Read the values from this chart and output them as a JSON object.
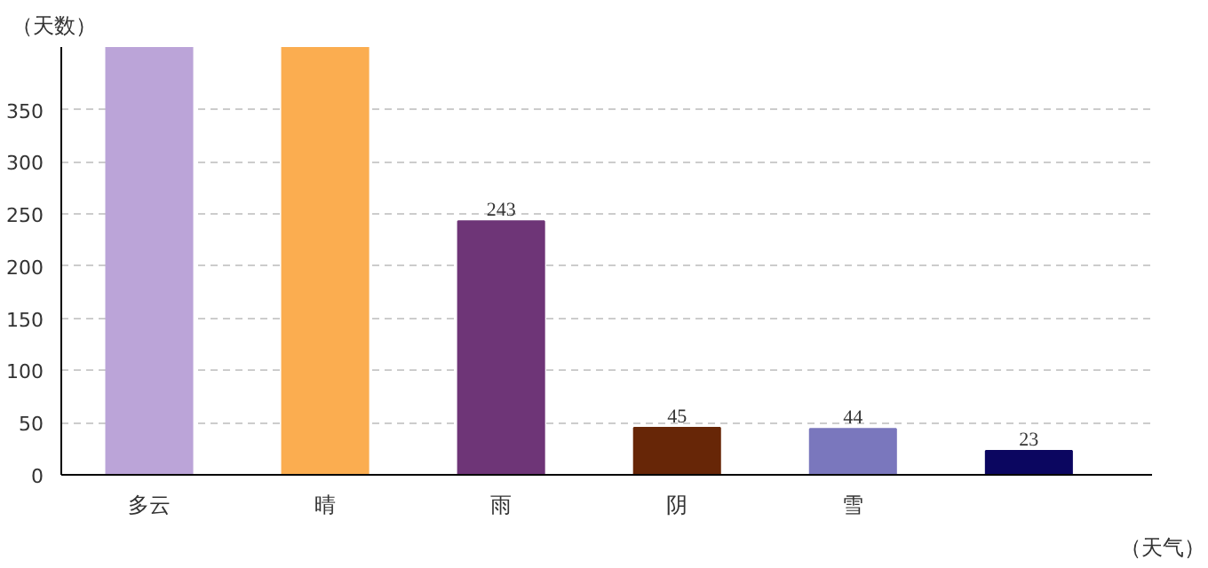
{
  "chart_data": {
    "type": "bar",
    "xlabel": "（天气）",
    "ylabel": "（天数）",
    "categories": [
      "多云",
      "晴",
      "雨",
      "阴",
      "雪",
      null
    ],
    "values": [
      410,
      410,
      243,
      45,
      44,
      23
    ],
    "colors": [
      "#bba4d8",
      "#fbad50",
      "#6e3577",
      "#672607",
      "#7a77bd",
      "#0b0660"
    ],
    "value_labels": [
      null,
      null,
      "243",
      "45",
      "44",
      "23"
    ],
    "ylim": [
      0,
      410
    ],
    "yticks": [
      0,
      50,
      100,
      150,
      200,
      250,
      300,
      350
    ],
    "grid": "y"
  }
}
